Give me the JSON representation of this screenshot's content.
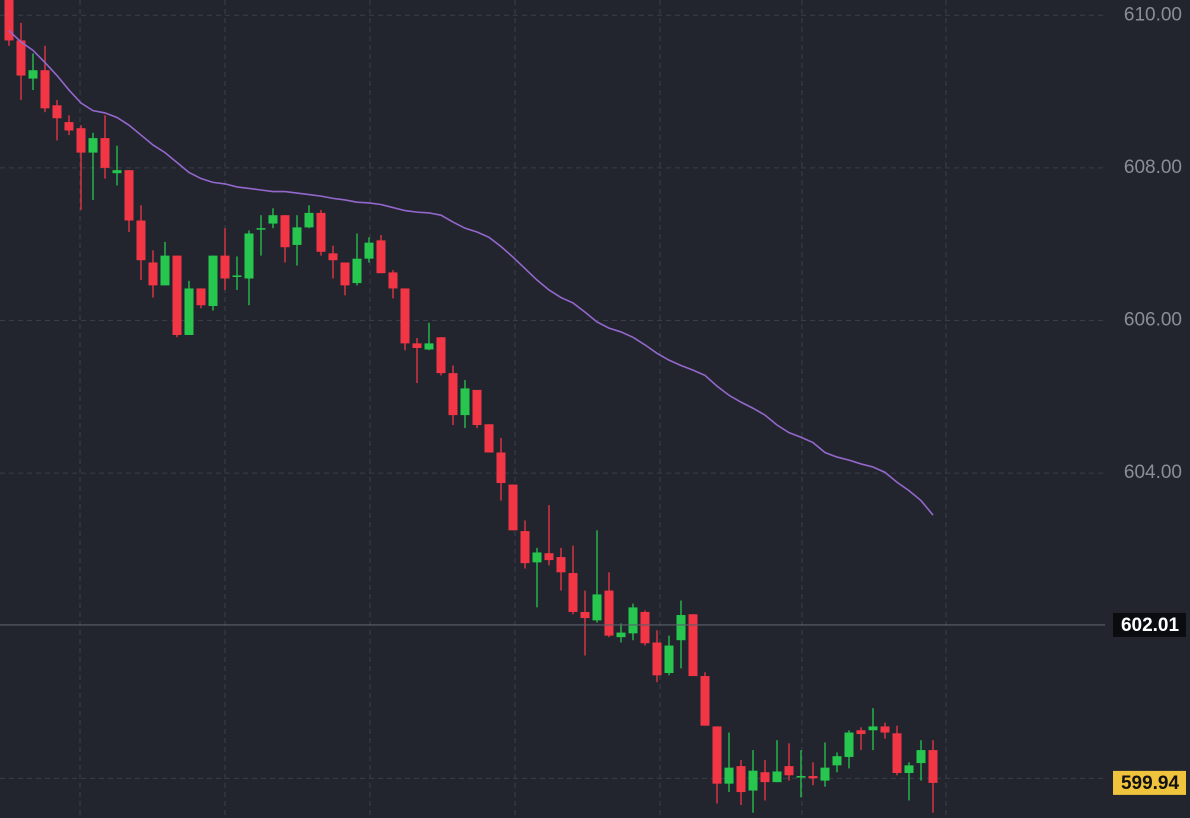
{
  "chart_data": {
    "type": "candlestick",
    "up_color": "#26c64f",
    "down_color": "#f23645",
    "ylim": [
      599.48,
      610.2
    ],
    "yticks": [
      {
        "value": 610,
        "label": "610.00"
      },
      {
        "value": 608,
        "label": "608.00"
      },
      {
        "value": 606,
        "label": "606.00"
      },
      {
        "value": 604,
        "label": "604.00"
      },
      {
        "value": 600,
        "label": ""
      }
    ],
    "grid": true,
    "open": [
      610.2,
      609.67,
      609.17,
      609.28,
      608.82,
      608.6,
      608.52,
      608.2,
      608.39,
      607.93,
      607.97,
      607.31,
      606.76,
      606.46,
      606.85,
      605.81,
      606.42,
      606.19,
      606.85,
      606.57,
      606.55,
      607.2,
      607.27,
      607.38,
      606.99,
      607.22,
      607.41,
      606.88,
      606.76,
      606.49,
      606.81,
      607.05,
      606.63,
      606.42,
      605.7,
      605.62,
      605.78,
      605.31,
      604.76,
      605.09,
      604.64,
      604.27,
      603.85,
      603.24,
      602.83,
      602.95,
      602.9,
      602.69,
      602.18,
      602.07,
      602.46,
      601.85,
      601.9,
      602.18,
      601.78,
      601.38,
      601.81,
      602.15,
      601.34,
      600.68,
      599.93,
      600.16,
      599.84,
      600.08,
      599.95,
      600.16,
      600.01,
      600.03,
      599.97,
      600.17,
      600.28,
      600.63,
      600.63,
      600.68,
      600.59,
      600.07,
      600.2,
      600.37
    ],
    "high": [
      610.25,
      609.9,
      609.5,
      609.6,
      608.89,
      608.69,
      608.56,
      608.46,
      608.69,
      608.29,
      607.97,
      607.51,
      606.92,
      607.03,
      606.85,
      606.52,
      606.42,
      606.85,
      607.21,
      606.84,
      607.18,
      607.38,
      607.47,
      607.38,
      607.38,
      607.51,
      607.45,
      606.98,
      606.76,
      607.14,
      607.09,
      607.12,
      606.66,
      606.42,
      605.77,
      605.97,
      605.78,
      605.41,
      605.22,
      605.09,
      604.64,
      604.46,
      603.85,
      603.38,
      603.02,
      603.58,
      603.02,
      603.05,
      602.46,
      603.25,
      602.7,
      602.03,
      602.29,
      602.2,
      601.94,
      601.87,
      602.33,
      602.15,
      601.39,
      600.68,
      600.6,
      600.24,
      600.37,
      600.24,
      600.5,
      600.46,
      600.37,
      600.21,
      600.47,
      600.34,
      600.63,
      600.67,
      600.92,
      600.73,
      600.69,
      600.21,
      600.5,
      600.5
    ],
    "low": [
      609.6,
      608.89,
      609.02,
      608.73,
      608.36,
      608.43,
      607.45,
      607.58,
      607.86,
      607.77,
      607.16,
      606.53,
      606.3,
      606.46,
      605.78,
      605.81,
      606.16,
      606.13,
      606.4,
      606.4,
      606.2,
      606.85,
      607.21,
      606.76,
      606.72,
      607.21,
      606.85,
      606.55,
      606.33,
      606.46,
      606.76,
      606.62,
      606.29,
      605.61,
      605.18,
      605.61,
      605.28,
      604.63,
      604.59,
      604.59,
      604.27,
      603.64,
      603.25,
      602.75,
      602.24,
      602.79,
      602.46,
      602.15,
      601.61,
      602.04,
      601.85,
      601.78,
      601.81,
      601.74,
      601.26,
      601.35,
      601.44,
      601.34,
      600.69,
      599.67,
      599.82,
      599.65,
      599.55,
      599.71,
      599.95,
      599.97,
      599.75,
      599.91,
      599.89,
      600.08,
      600.13,
      600.37,
      600.37,
      600.52,
      600.04,
      599.71,
      599.97,
      599.55
    ],
    "close": [
      609.67,
      609.21,
      609.28,
      608.78,
      608.65,
      608.49,
      608.2,
      608.39,
      608.0,
      607.97,
      607.31,
      606.79,
      606.46,
      606.85,
      605.81,
      606.42,
      606.2,
      606.85,
      606.55,
      606.59,
      607.14,
      607.21,
      607.38,
      606.96,
      607.22,
      607.41,
      606.9,
      606.79,
      606.46,
      606.81,
      607.02,
      606.62,
      606.42,
      605.7,
      605.64,
      605.7,
      605.31,
      604.76,
      605.11,
      604.63,
      604.27,
      603.87,
      603.25,
      602.82,
      602.96,
      602.86,
      602.7,
      602.18,
      602.1,
      602.41,
      601.87,
      601.91,
      602.24,
      601.77,
      601.35,
      601.74,
      602.14,
      601.34,
      600.69,
      599.93,
      600.14,
      599.82,
      600.1,
      599.95,
      600.09,
      600.04,
      600.03,
      600.0,
      600.14,
      600.29,
      600.6,
      600.58,
      600.68,
      600.6,
      600.07,
      600.17,
      600.37,
      599.94
    ],
    "moving_average": {
      "color": "#9467cc",
      "values": [
        609.8,
        609.65,
        609.54,
        609.38,
        609.21,
        609.02,
        608.85,
        608.75,
        608.72,
        608.66,
        608.56,
        608.43,
        608.3,
        608.2,
        608.07,
        607.94,
        607.86,
        607.81,
        607.79,
        607.75,
        607.73,
        607.71,
        607.69,
        607.69,
        607.67,
        607.65,
        607.63,
        607.6,
        607.58,
        607.55,
        607.54,
        607.52,
        607.48,
        607.44,
        607.42,
        607.41,
        607.38,
        607.29,
        607.21,
        607.16,
        607.09,
        606.97,
        606.83,
        606.68,
        606.53,
        606.4,
        606.3,
        606.23,
        606.11,
        605.98,
        605.9,
        605.85,
        605.78,
        605.68,
        605.57,
        605.48,
        605.41,
        605.35,
        605.28,
        605.14,
        605.02,
        604.93,
        604.85,
        604.76,
        604.63,
        604.53,
        604.47,
        604.4,
        604.27,
        604.21,
        604.17,
        604.12,
        604.08,
        604.01,
        603.88,
        603.77,
        603.64,
        603.45
      ]
    },
    "price_line": 602.01,
    "last_price_color": "#f0c33c"
  }
}
